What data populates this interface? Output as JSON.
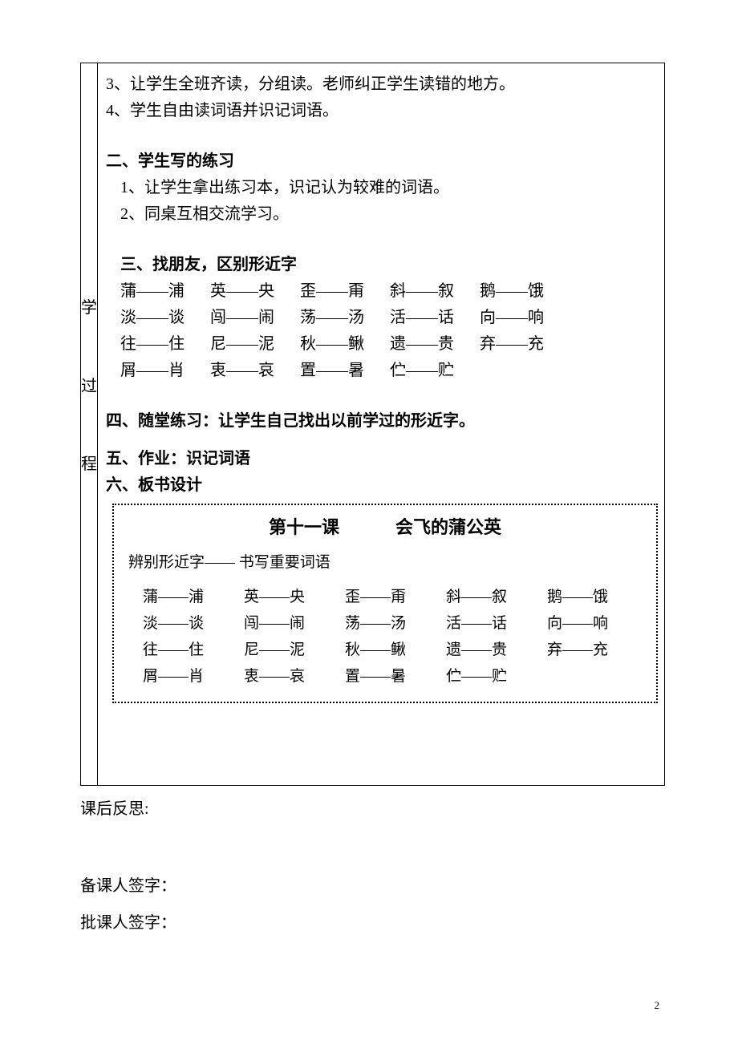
{
  "leftCol": {
    "c1": "学",
    "c2": "过",
    "c3": "程"
  },
  "content": {
    "line3": "3、让学生全班齐读，分组读。老师纠正学生读错的地方。",
    "line4": "4、学生自由读词语并识记词语。",
    "sec2_title": "二、学生写的练习",
    "sec2_1": "1、让学生拿出练习本，识记认为较难的词语。",
    "sec2_2": "2、同桌互相交流学习。",
    "sec3_title": "三、找朋友，区别形近字",
    "pairs": [
      [
        "蒲——浦",
        "英——央",
        "歪——甭",
        "斜——叙",
        "鹅——饿"
      ],
      [
        "淡——谈",
        "闯——闹",
        "荡——汤",
        "活——话",
        "向——响"
      ],
      [
        "往——住",
        "尼——泥",
        "秋——鳅",
        "遗——贵",
        "弃——充"
      ],
      [
        "屑——肖",
        "衷——哀",
        "置——暑",
        "伫——贮",
        ""
      ]
    ],
    "sec4": "四、随堂练习：让学生自己找出以前学过的形近字。",
    "sec5": "五、作业：识记词语",
    "sec6": "六、板书设计"
  },
  "board": {
    "title_left": "第十一课",
    "title_right": "会飞的蒲公英",
    "sub": "辨别形近字——  书写重要词语",
    "pairs": [
      [
        "蒲——浦",
        "英——央",
        "歪——甭",
        "斜——叙",
        "鹅——饿"
      ],
      [
        "淡——谈",
        "闯——闹",
        "荡——汤",
        "活——话",
        "向——响"
      ],
      [
        "往——住",
        "尼——泥",
        "秋——鳅",
        "遗——贵",
        "弃——充"
      ],
      [
        "屑——肖",
        "衷——哀",
        "置——暑",
        "伫——贮",
        ""
      ]
    ]
  },
  "after": {
    "reflect": "课后反思:",
    "sign1": "备课人签字：",
    "sign2": "批课人签字："
  },
  "pageNumber": "2"
}
